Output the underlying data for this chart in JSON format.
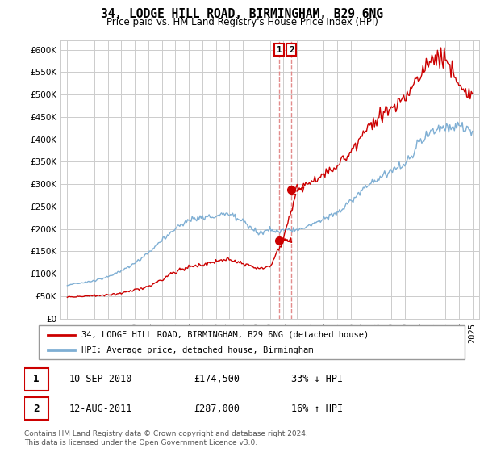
{
  "title": "34, LODGE HILL ROAD, BIRMINGHAM, B29 6NG",
  "subtitle": "Price paid vs. HM Land Registry's House Price Index (HPI)",
  "legend_line1": "34, LODGE HILL ROAD, BIRMINGHAM, B29 6NG (detached house)",
  "legend_line2": "HPI: Average price, detached house, Birmingham",
  "footer": "Contains HM Land Registry data © Crown copyright and database right 2024.\nThis data is licensed under the Open Government Licence v3.0.",
  "transactions": [
    {
      "num": 1,
      "date": "10-SEP-2010",
      "price": "£174,500",
      "hpi": "33% ↓ HPI",
      "year": 2010.7
    },
    {
      "num": 2,
      "date": "12-AUG-2011",
      "price": "£287,000",
      "hpi": "16% ↑ HPI",
      "year": 2011.6
    }
  ],
  "transaction_prices": [
    174500,
    287000
  ],
  "transaction_years": [
    2010.7,
    2011.6
  ],
  "ylim": [
    0,
    620000
  ],
  "yticks": [
    0,
    50000,
    100000,
    150000,
    200000,
    250000,
    300000,
    350000,
    400000,
    450000,
    500000,
    550000,
    600000
  ],
  "xlim_start": 1994.5,
  "xlim_end": 2025.5,
  "red_color": "#cc0000",
  "blue_color": "#7fafd4",
  "dashed_color": "#e08080",
  "background_color": "#ffffff",
  "grid_color": "#cccccc",
  "seed": 42
}
